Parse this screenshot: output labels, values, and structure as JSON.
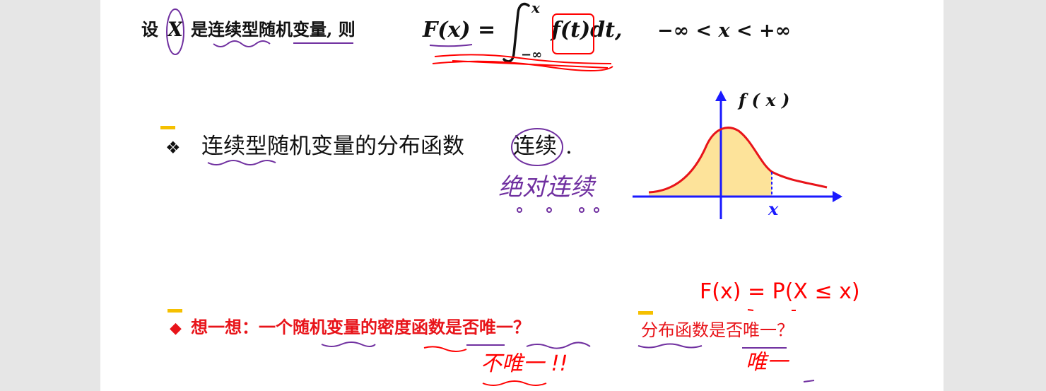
{
  "line1": {
    "text_pre": "设",
    "var": "X",
    "text_mid": "是连续型随机变量, 则",
    "formula_lhs": "F(x) =",
    "integral_upper": "x",
    "integral_lower": "−∞",
    "integrand": "f(t)dt,",
    "range": "−∞ < x < +∞"
  },
  "bullet": {
    "icon": "four-diamond-bullet",
    "text": "连续型随机变量的分布函数",
    "emph": "连续",
    "period": "."
  },
  "graph": {
    "ylabel": "f ( x )",
    "xlabel": "x",
    "curve_color": "#e8141a",
    "fill_color": "#fde39a",
    "axis_color": "#1a1aff"
  },
  "question": {
    "icon": "diamond-bullet",
    "text": "想一想：一个随机变量的密度函数是否唯一？",
    "text2": "分布函数是否唯一？",
    "color": "#e8141a"
  },
  "handwriting": {
    "absolutely_continuous": "绝对连续",
    "cdf_definition": "F(x) = P(X ≤ x)",
    "not_unique": "不唯一 !!",
    "unique": "唯一"
  },
  "annotation_colors": {
    "purple": "#7030a0",
    "red": "#ff0000",
    "yellow": "#f5c000"
  }
}
